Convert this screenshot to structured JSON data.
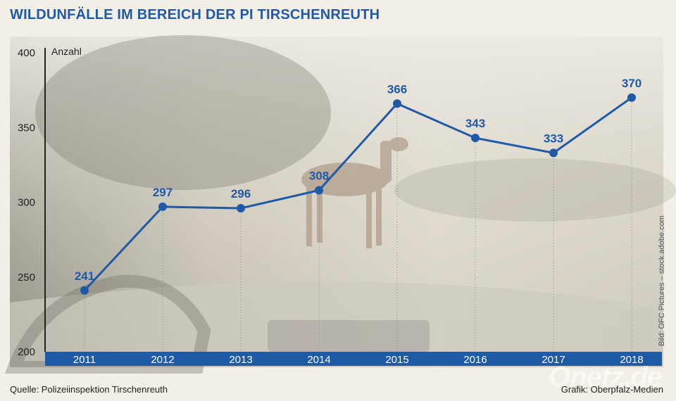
{
  "header": {
    "title": "WILDUNFÄLLE IM BEREICH DER PI TIRSCHENREUTH"
  },
  "footer": {
    "source": "Quelle: Polizeiinspektion Tirschenreuth",
    "graphic_credit": "Grafik: Oberpfalz-Medien",
    "photo_credit": "Bild: OFC Pictures – stock.adobe.com",
    "watermark": "Onetz.de"
  },
  "chart_data": {
    "type": "line",
    "title": "WILDUNFÄLLE IM BEREICH DER PI TIRSCHENREUTH",
    "ylabel": "Anzahl",
    "xlabel": "",
    "categories": [
      "2011",
      "2012",
      "2013",
      "2014",
      "2015",
      "2016",
      "2017",
      "2018"
    ],
    "values": [
      241,
      297,
      296,
      308,
      366,
      343,
      333,
      370
    ],
    "ylim": [
      200,
      400
    ],
    "yticks": [
      200,
      250,
      300,
      350,
      400
    ],
    "data_labels": true,
    "grid": "vertical dotted guides per point",
    "colors": {
      "line": "#1f5aa6",
      "axis_band": "#1f5aa6",
      "label": "#1f5aa6"
    }
  }
}
